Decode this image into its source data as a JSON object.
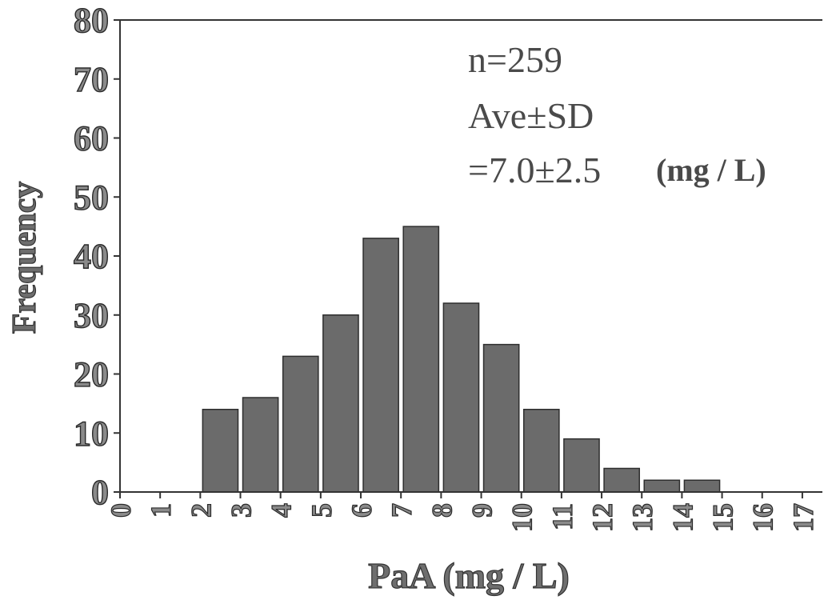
{
  "chart_data": {
    "type": "bar",
    "title": "",
    "xlabel": "PaA (mg / L)",
    "ylabel": "Frequency",
    "ylim": [
      0,
      80
    ],
    "xlim": [
      0,
      17.5
    ],
    "grid": false,
    "yticks": [
      "0",
      "10",
      "20",
      "30",
      "40",
      "50",
      "60",
      "70",
      "80"
    ],
    "xticks": [
      "0",
      "1",
      "2",
      "3",
      "4",
      "5",
      "6",
      "7",
      "8",
      "9",
      "10",
      "11",
      "12",
      "13",
      "14",
      "15",
      "16",
      "17"
    ],
    "bins": [
      {
        "x0": 2,
        "x1": 3,
        "value": 14
      },
      {
        "x0": 3,
        "x1": 4,
        "value": 16
      },
      {
        "x0": 4,
        "x1": 5,
        "value": 23
      },
      {
        "x0": 5,
        "x1": 6,
        "value": 30
      },
      {
        "x0": 6,
        "x1": 7,
        "value": 43
      },
      {
        "x0": 7,
        "x1": 8,
        "value": 45
      },
      {
        "x0": 8,
        "x1": 9,
        "value": 32
      },
      {
        "x0": 9,
        "x1": 10,
        "value": 25
      },
      {
        "x0": 10,
        "x1": 11,
        "value": 14
      },
      {
        "x0": 11,
        "x1": 12,
        "value": 9
      },
      {
        "x0": 12,
        "x1": 13,
        "value": 4
      },
      {
        "x0": 13,
        "x1": 14,
        "value": 2
      },
      {
        "x0": 14,
        "x1": 15,
        "value": 2
      }
    ],
    "annotations": {
      "n": "n=259",
      "stat_label": "Ave±SD",
      "stat_value": "=7.0±2.5",
      "unit": "(mg / L)"
    },
    "bar_color": "#6b6b6b"
  }
}
